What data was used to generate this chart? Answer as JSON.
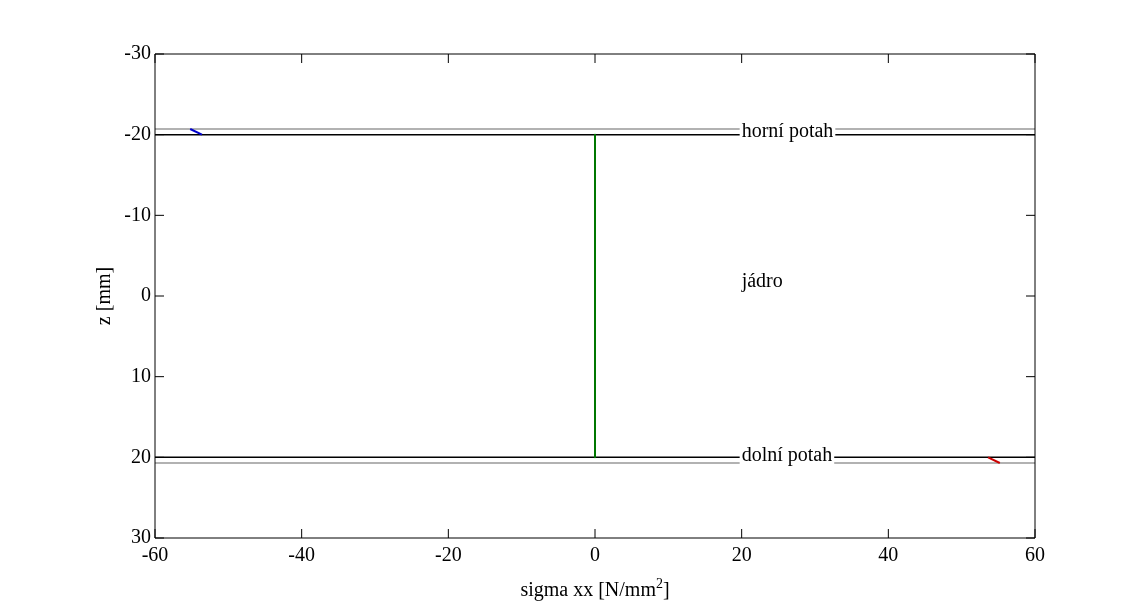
{
  "chart_data": {
    "type": "line",
    "xlabel": "sigma xx [N/mm$^{2}$]",
    "ylabel": "z [mm]",
    "xlim": [
      -60,
      60
    ],
    "xticks": [
      -60,
      -40,
      -20,
      0,
      20,
      40,
      60
    ],
    "ylim": [
      30,
      -30
    ],
    "yticks": [
      -30,
      -20,
      -10,
      0,
      10,
      20,
      30
    ],
    "grid": false,
    "legend": false,
    "marker": "none",
    "line_style": "solid",
    "series": [
      {
        "color": "#0000cc",
        "x": [
          -55.2,
          -53.6
        ],
        "values": [
          -20.7,
          -20
        ]
      },
      {
        "color": "#007700",
        "x": [
          0,
          0,
          0
        ],
        "values": [
          -20,
          0,
          20
        ]
      },
      {
        "color": "#cc0000",
        "x": [
          53.6,
          55.2
        ],
        "values": [
          20,
          20.7
        ]
      }
    ],
    "ref_lines": [
      {
        "axis": "y",
        "value": -20.7,
        "color": "#999999"
      },
      {
        "axis": "y",
        "value": -20,
        "color": "#000000"
      },
      {
        "axis": "y",
        "value": 20,
        "color": "#000000"
      },
      {
        "axis": "y",
        "value": 20.7,
        "color": "#999999"
      }
    ],
    "annotations": [
      "horní potah",
      "jádro",
      "dolní potah"
    ]
  }
}
